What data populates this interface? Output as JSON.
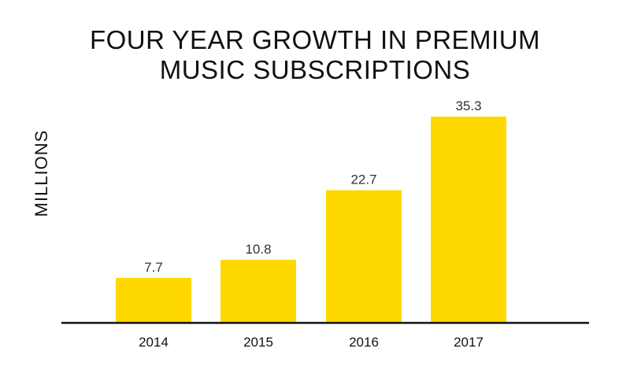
{
  "chart_data": {
    "type": "bar",
    "title": [
      "FOUR YEAR GROWTH IN PREMIUM",
      "MUSIC SUBSCRIPTIONS"
    ],
    "ylabel": "MILLIONS",
    "xlabel": "",
    "categories": [
      "2014",
      "2015",
      "2016",
      "2017"
    ],
    "values": [
      7.7,
      10.8,
      22.7,
      35.3
    ],
    "data_labels": [
      "7.7",
      "10.8",
      "22.7",
      "35.3"
    ],
    "ylim": [
      0,
      40
    ],
    "grid": false,
    "legend": "none",
    "bar_color": "#FFD800",
    "axis_color": "#111111"
  }
}
